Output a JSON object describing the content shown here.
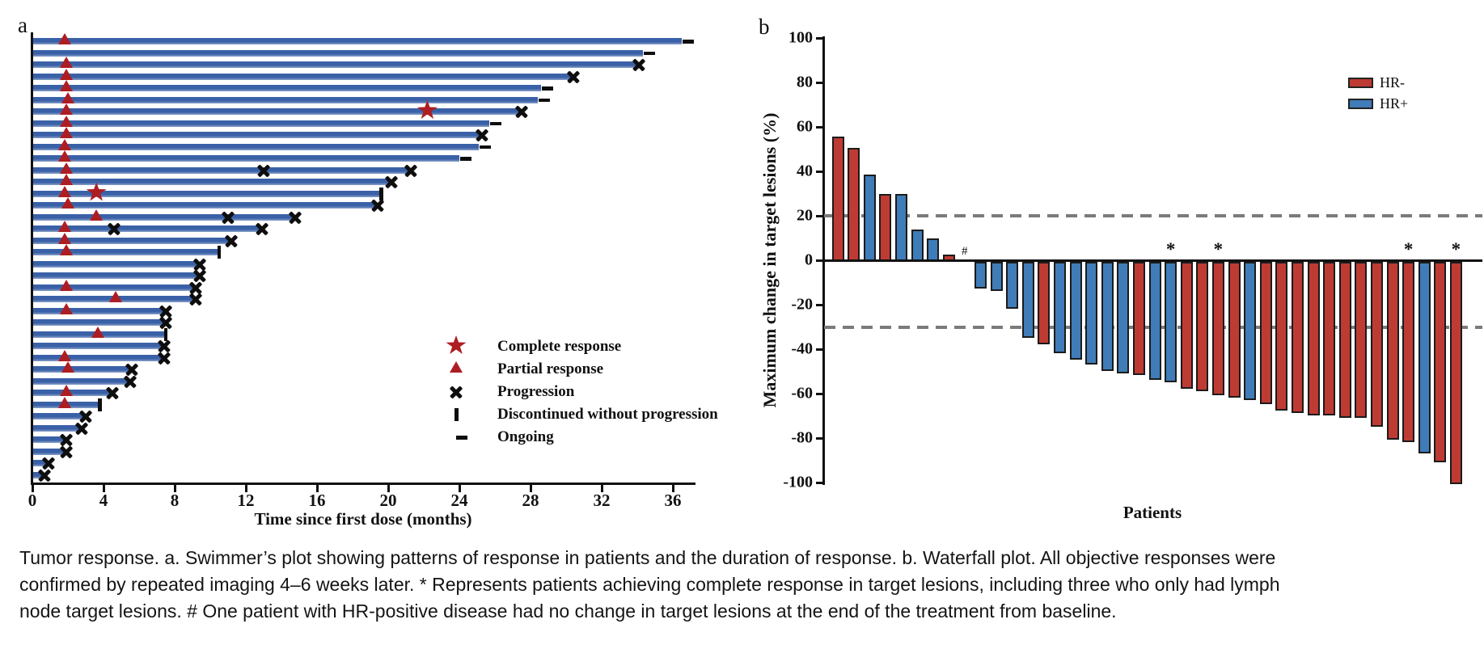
{
  "panel_labels": {
    "a": "a",
    "b": "b"
  },
  "colors": {
    "swimmer_bar": "#3A61A7",
    "swimmer_bar_light": "#8BA1CA",
    "marker_red": "#AD1E23",
    "hr_negative": "#BE3B33",
    "hr_positive": "#3F7CB8",
    "axis": "#111111",
    "dashed_reference": "#7B7B7B"
  },
  "chart_data": [
    {
      "type": "swimmer",
      "xlabel": "Time since first dose (months)",
      "x_ticks": [
        0,
        4,
        8,
        12,
        16,
        20,
        24,
        28,
        32,
        36
      ],
      "xlim": [
        0,
        37
      ],
      "legend": [
        {
          "marker": "star",
          "label": "Complete response"
        },
        {
          "marker": "triangle",
          "label": "Partial response"
        },
        {
          "marker": "cross",
          "label": "Progression"
        },
        {
          "marker": "vbar",
          "label": "Discontinued without progression"
        },
        {
          "marker": "dash",
          "label": "Ongoing"
        }
      ],
      "patients": [
        {
          "duration": 36.5,
          "end": "ongoing",
          "events": [
            {
              "type": "pr",
              "t": 1.8
            }
          ]
        },
        {
          "duration": 34.3,
          "end": "ongoing",
          "events": []
        },
        {
          "duration": 34.0,
          "end": "progression",
          "events": [
            {
              "type": "pr",
              "t": 1.9
            }
          ]
        },
        {
          "duration": 30.3,
          "end": "progression",
          "events": [
            {
              "type": "pr",
              "t": 1.9
            }
          ]
        },
        {
          "duration": 28.6,
          "end": "ongoing",
          "events": [
            {
              "type": "pr",
              "t": 1.9
            }
          ]
        },
        {
          "duration": 28.4,
          "end": "ongoing",
          "events": [
            {
              "type": "pr",
              "t": 2.0
            }
          ]
        },
        {
          "duration": 27.4,
          "end": "progression",
          "events": [
            {
              "type": "pr",
              "t": 1.9
            },
            {
              "type": "cr",
              "t": 22.2
            }
          ]
        },
        {
          "duration": 25.7,
          "end": "ongoing",
          "events": [
            {
              "type": "pr",
              "t": 1.9
            }
          ]
        },
        {
          "duration": 25.2,
          "end": "progression",
          "events": [
            {
              "type": "pr",
              "t": 1.9
            }
          ]
        },
        {
          "duration": 25.1,
          "end": "ongoing",
          "events": [
            {
              "type": "pr",
              "t": 1.8
            }
          ]
        },
        {
          "duration": 24.0,
          "end": "ongoing",
          "events": [
            {
              "type": "pr",
              "t": 1.8
            }
          ]
        },
        {
          "duration": 21.2,
          "end": "progression",
          "events": [
            {
              "type": "pr",
              "t": 1.9
            },
            {
              "type": "prog",
              "t": 13.0
            }
          ]
        },
        {
          "duration": 20.1,
          "end": "progression",
          "events": [
            {
              "type": "pr",
              "t": 1.9
            }
          ]
        },
        {
          "duration": 19.5,
          "end": "discontinued",
          "events": [
            {
              "type": "pr",
              "t": 1.8
            },
            {
              "type": "cr",
              "t": 3.6
            }
          ]
        },
        {
          "duration": 19.3,
          "end": "progression",
          "events": [
            {
              "type": "pr",
              "t": 2.0
            }
          ]
        },
        {
          "duration": 14.7,
          "end": "progression",
          "events": [
            {
              "type": "pr",
              "t": 3.6
            },
            {
              "type": "prog",
              "t": 11.0
            }
          ]
        },
        {
          "duration": 12.8,
          "end": "progression",
          "events": [
            {
              "type": "pr",
              "t": 1.8
            },
            {
              "type": "prog",
              "t": 4.6
            }
          ]
        },
        {
          "duration": 11.1,
          "end": "progression",
          "events": [
            {
              "type": "pr",
              "t": 1.8
            }
          ]
        },
        {
          "duration": 10.4,
          "end": "discontinued",
          "events": [
            {
              "type": "pr",
              "t": 1.9
            }
          ]
        },
        {
          "duration": 9.3,
          "end": "progression",
          "events": []
        },
        {
          "duration": 9.3,
          "end": "progression",
          "events": []
        },
        {
          "duration": 9.1,
          "end": "progression",
          "events": [
            {
              "type": "pr",
              "t": 1.9
            }
          ]
        },
        {
          "duration": 9.1,
          "end": "progression",
          "events": [
            {
              "type": "pr",
              "t": 4.7
            }
          ]
        },
        {
          "duration": 7.4,
          "end": "progression",
          "events": [
            {
              "type": "pr",
              "t": 1.9
            }
          ]
        },
        {
          "duration": 7.4,
          "end": "progression",
          "events": []
        },
        {
          "duration": 7.4,
          "end": "discontinued",
          "events": [
            {
              "type": "pr",
              "t": 3.7
            }
          ]
        },
        {
          "duration": 7.3,
          "end": "progression",
          "events": []
        },
        {
          "duration": 7.3,
          "end": "progression",
          "events": [
            {
              "type": "pr",
              "t": 1.8
            }
          ]
        },
        {
          "duration": 5.5,
          "end": "progression",
          "events": [
            {
              "type": "pr",
              "t": 2.0
            }
          ]
        },
        {
          "duration": 5.4,
          "end": "progression",
          "events": []
        },
        {
          "duration": 4.4,
          "end": "progression",
          "events": [
            {
              "type": "pr",
              "t": 1.9
            }
          ]
        },
        {
          "duration": 3.7,
          "end": "discontinued",
          "events": [
            {
              "type": "pr",
              "t": 1.8
            }
          ]
        },
        {
          "duration": 2.9,
          "end": "progression",
          "events": []
        },
        {
          "duration": 2.7,
          "end": "progression",
          "events": []
        },
        {
          "duration": 1.8,
          "end": "progression",
          "events": []
        },
        {
          "duration": 1.8,
          "end": "progression",
          "events": []
        },
        {
          "duration": 0.8,
          "end": "progression",
          "events": []
        },
        {
          "duration": 0.6,
          "end": "progression",
          "events": []
        }
      ]
    },
    {
      "type": "waterfall-bar",
      "ylabel": "Maximum change in target lesions (%)",
      "xlabel": "Patients",
      "y_ticks": [
        100,
        80,
        60,
        40,
        20,
        0,
        -20,
        -40,
        -60,
        -80,
        -100
      ],
      "ylim": [
        -100,
        100
      ],
      "reference_lines": [
        20,
        -30
      ],
      "legend": [
        {
          "label": "HR-",
          "hr": "negative"
        },
        {
          "label": "HR+",
          "hr": "positive"
        }
      ],
      "patients": [
        {
          "value": 56,
          "hr": "negative",
          "flag": null
        },
        {
          "value": 51,
          "hr": "negative",
          "flag": null
        },
        {
          "value": 39,
          "hr": "positive",
          "flag": null
        },
        {
          "value": 30,
          "hr": "negative",
          "flag": null
        },
        {
          "value": 30,
          "hr": "positive",
          "flag": null
        },
        {
          "value": 14,
          "hr": "positive",
          "flag": null
        },
        {
          "value": 10,
          "hr": "positive",
          "flag": null
        },
        {
          "value": 3,
          "hr": "negative",
          "flag": null
        },
        {
          "value": 0,
          "hr": "positive",
          "flag": "hash"
        },
        {
          "value": -12,
          "hr": "positive",
          "flag": null
        },
        {
          "value": -13,
          "hr": "positive",
          "flag": null
        },
        {
          "value": -21,
          "hr": "positive",
          "flag": null
        },
        {
          "value": -34,
          "hr": "positive",
          "flag": null
        },
        {
          "value": -37,
          "hr": "negative",
          "flag": null
        },
        {
          "value": -41,
          "hr": "positive",
          "flag": null
        },
        {
          "value": -44,
          "hr": "positive",
          "flag": null
        },
        {
          "value": -46,
          "hr": "positive",
          "flag": null
        },
        {
          "value": -49,
          "hr": "positive",
          "flag": null
        },
        {
          "value": -50,
          "hr": "positive",
          "flag": null
        },
        {
          "value": -51,
          "hr": "negative",
          "flag": null
        },
        {
          "value": -53,
          "hr": "positive",
          "flag": null
        },
        {
          "value": -54,
          "hr": "positive",
          "flag": "star"
        },
        {
          "value": -57,
          "hr": "negative",
          "flag": null
        },
        {
          "value": -58,
          "hr": "negative",
          "flag": null
        },
        {
          "value": -60,
          "hr": "negative",
          "flag": "star"
        },
        {
          "value": -61,
          "hr": "negative",
          "flag": null
        },
        {
          "value": -62,
          "hr": "positive",
          "flag": null
        },
        {
          "value": -64,
          "hr": "negative",
          "flag": null
        },
        {
          "value": -67,
          "hr": "negative",
          "flag": null
        },
        {
          "value": -68,
          "hr": "negative",
          "flag": null
        },
        {
          "value": -69,
          "hr": "negative",
          "flag": null
        },
        {
          "value": -69,
          "hr": "negative",
          "flag": null
        },
        {
          "value": -70,
          "hr": "negative",
          "flag": null
        },
        {
          "value": -70,
          "hr": "negative",
          "flag": null
        },
        {
          "value": -74,
          "hr": "negative",
          "flag": null
        },
        {
          "value": -80,
          "hr": "negative",
          "flag": null
        },
        {
          "value": -81,
          "hr": "negative",
          "flag": "star"
        },
        {
          "value": -86,
          "hr": "positive",
          "flag": null
        },
        {
          "value": -90,
          "hr": "negative",
          "flag": null
        },
        {
          "value": -100,
          "hr": "negative",
          "flag": "star"
        }
      ],
      "annotations": {
        "star_symbol": "*",
        "hash_symbol": "#"
      }
    }
  ],
  "caption": {
    "lines": [
      "Tumor response. a. Swimmer’s plot showing patterns of response in patients and the duration of response. b. Waterfall plot. All objective responses were",
      "confirmed by repeated imaging 4–6 weeks later. * Represents patients achieving complete response in target lesions, including three who only had lymph",
      "node target lesions. # One patient with HR-positive disease had no change in target lesions at the end of the treatment from baseline."
    ]
  }
}
